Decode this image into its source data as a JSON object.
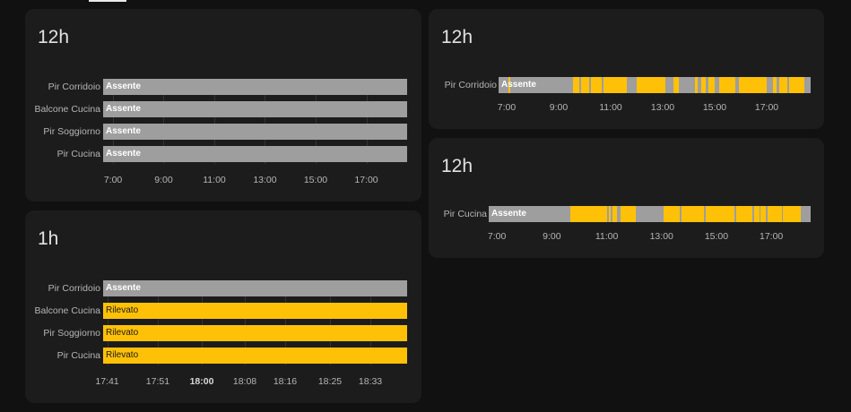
{
  "colors": {
    "absent": "#9e9e9e",
    "detected": "#ffc107",
    "card": "#1c1c1c",
    "page": "#111111"
  },
  "cards": [
    {
      "id": "card-12h-all",
      "title": "12h",
      "rows": [
        {
          "label": "Pir Corridoio",
          "state": "absent",
          "state_text": "Assente",
          "segments": []
        },
        {
          "label": "Balcone Cucina",
          "state": "absent",
          "state_text": "Assente",
          "segments": []
        },
        {
          "label": "Pir Soggiorno",
          "state": "absent",
          "state_text": "Assente",
          "segments": []
        },
        {
          "label": "Pir Cucina",
          "state": "absent",
          "state_text": "Assente",
          "segments": []
        }
      ],
      "ticks": [
        {
          "label": "7:00",
          "pos": 0.0326,
          "bold": false
        },
        {
          "label": "9:00",
          "pos": 0.1991,
          "bold": false
        },
        {
          "label": "11:00",
          "pos": 0.3658,
          "bold": false
        },
        {
          "label": "13:00",
          "pos": 0.5324,
          "bold": false
        },
        {
          "label": "15:00",
          "pos": 0.6991,
          "bold": false
        },
        {
          "label": "17:00",
          "pos": 0.8658,
          "bold": false
        }
      ]
    },
    {
      "id": "card-1h-all",
      "title": "1h",
      "rows": [
        {
          "label": "Pir Corridoio",
          "state": "absent",
          "state_text": "Assente",
          "segments": []
        },
        {
          "label": "Balcone Cucina",
          "state": "detected",
          "state_text": "Rilevato",
          "segments": []
        },
        {
          "label": "Pir Soggiorno",
          "state": "detected",
          "state_text": "Rilevato",
          "segments": []
        },
        {
          "label": "Pir Cucina",
          "state": "detected",
          "state_text": "Rilevato",
          "segments": []
        }
      ],
      "ticks": [
        {
          "label": "17:41",
          "pos": 0.0133,
          "bold": false
        },
        {
          "label": "17:51",
          "pos": 0.1798,
          "bold": false
        },
        {
          "label": "18:00",
          "pos": 0.3245,
          "bold": true
        },
        {
          "label": "18:08",
          "pos": 0.4661,
          "bold": false
        },
        {
          "label": "18:16",
          "pos": 0.5988,
          "bold": false
        },
        {
          "label": "18:25",
          "pos": 0.7463,
          "bold": false
        },
        {
          "label": "18:33",
          "pos": 0.8791,
          "bold": false
        }
      ]
    },
    {
      "id": "card-12h-corridoio",
      "title": "12h",
      "rows": [
        {
          "label": "Pir Corridoio",
          "state": "absent",
          "state_text": "Assente",
          "segments": [
            [
              0.033,
              0.038
            ],
            [
              0.238,
              0.26
            ],
            [
              0.263,
              0.29
            ],
            [
              0.297,
              0.33
            ],
            [
              0.335,
              0.41
            ],
            [
              0.443,
              0.535
            ],
            [
              0.56,
              0.577
            ],
            [
              0.63,
              0.637
            ],
            [
              0.648,
              0.665
            ],
            [
              0.672,
              0.693
            ],
            [
              0.708,
              0.76
            ],
            [
              0.77,
              0.86
            ],
            [
              0.878,
              0.89
            ],
            [
              0.9,
              0.925
            ],
            [
              0.93,
              0.98
            ]
          ]
        }
      ],
      "ticks": [
        {
          "label": "7:00",
          "pos": 0.0259,
          "bold": false
        },
        {
          "label": "9:00",
          "pos": 0.1925,
          "bold": false
        },
        {
          "label": "11:00",
          "pos": 0.3592,
          "bold": false
        },
        {
          "label": "13:00",
          "pos": 0.5259,
          "bold": false
        },
        {
          "label": "15:00",
          "pos": 0.6925,
          "bold": false
        },
        {
          "label": "17:00",
          "pos": 0.8592,
          "bold": false
        }
      ]
    },
    {
      "id": "card-12h-cucina",
      "title": "12h",
      "rows": [
        {
          "label": "Pir Cucina",
          "state": "absent",
          "state_text": "Assente",
          "segments": [
            [
              0.253,
              0.368
            ],
            [
              0.373,
              0.38
            ],
            [
              0.385,
              0.398
            ],
            [
              0.41,
              0.458
            ],
            [
              0.543,
              0.593
            ],
            [
              0.6,
              0.668
            ],
            [
              0.675,
              0.763
            ],
            [
              0.77,
              0.82
            ],
            [
              0.825,
              0.84
            ],
            [
              0.845,
              0.86
            ],
            [
              0.865,
              0.91
            ],
            [
              0.915,
              0.97
            ]
          ]
        }
      ],
      "ticks": [
        {
          "label": "7:00",
          "pos": 0.0255,
          "bold": false
        },
        {
          "label": "9:00",
          "pos": 0.196,
          "bold": false
        },
        {
          "label": "11:00",
          "pos": 0.3665,
          "bold": false
        },
        {
          "label": "13:00",
          "pos": 0.5369,
          "bold": false
        },
        {
          "label": "15:00",
          "pos": 0.7074,
          "bold": false
        },
        {
          "label": "17:00",
          "pos": 0.8778,
          "bold": false
        }
      ]
    }
  ]
}
